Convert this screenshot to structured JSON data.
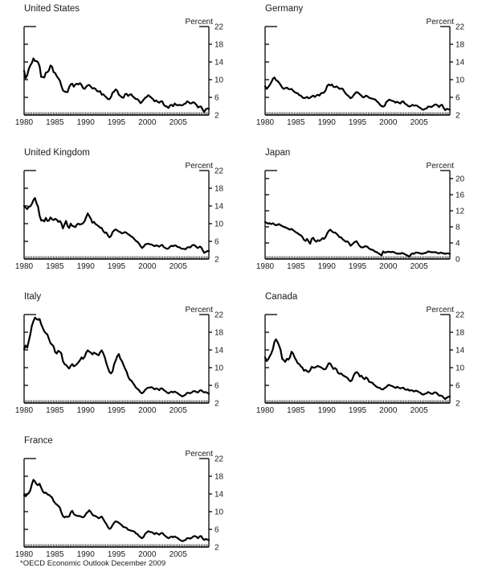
{
  "footnote": "*OECD Economic Outlook December 2009",
  "chart_data": [
    {
      "type": "line",
      "title": "United States",
      "unit": "Percent",
      "ylim": [
        2,
        22
      ],
      "yticks": [
        2,
        6,
        10,
        14,
        18,
        22
      ],
      "xlim": [
        1980,
        2010
      ],
      "xticks": [
        1980,
        1985,
        1990,
        1995,
        2000,
        2005
      ],
      "frequency": "quarterly 1980Q1-2009Q4",
      "values": [
        12.0,
        10.3,
        11.0,
        12.4,
        13.2,
        13.8,
        14.8,
        14.2,
        14.2,
        13.9,
        13.0,
        10.6,
        10.6,
        10.5,
        11.6,
        11.7,
        12.1,
        13.2,
        12.9,
        11.7,
        11.5,
        10.8,
        10.3,
        9.8,
        8.6,
        7.6,
        7.3,
        7.2,
        7.2,
        8.3,
        8.9,
        9.1,
        8.4,
        8.9,
        9.1,
        8.9,
        9.2,
        8.8,
        8.1,
        7.9,
        8.4,
        8.7,
        8.8,
        8.4,
        8.0,
        8.1,
        7.9,
        7.4,
        7.3,
        7.4,
        6.6,
        6.7,
        6.3,
        6.0,
        5.6,
        5.6,
        6.1,
        7.1,
        7.3,
        7.8,
        7.5,
        6.6,
        6.3,
        6.0,
        5.9,
        6.7,
        6.8,
        6.3,
        6.6,
        6.7,
        6.2,
        5.9,
        5.6,
        5.6,
        5.2,
        4.7,
        5.0,
        5.5,
        5.9,
        6.1,
        6.5,
        6.2,
        5.9,
        5.6,
        5.1,
        5.3,
        5.0,
        4.8,
        5.1,
        5.1,
        4.3,
        4.0,
        3.9,
        3.6,
        4.2,
        4.3,
        4.0,
        4.6,
        4.3,
        4.2,
        4.3,
        4.2,
        4.2,
        4.5,
        4.6,
        5.1,
        4.9,
        4.6,
        4.7,
        4.9,
        4.7,
        4.3,
        3.7,
        3.9,
        3.9,
        3.2,
        2.7,
        3.3,
        3.5,
        3.4
      ]
    },
    {
      "type": "line",
      "title": "Germany",
      "unit": "Percent",
      "ylim": [
        2,
        22
      ],
      "yticks": [
        2,
        6,
        10,
        14,
        18,
        22
      ],
      "xlim": [
        1980,
        2010
      ],
      "xticks": [
        1980,
        1985,
        1990,
        1995,
        2000,
        2005
      ],
      "frequency": "quarterly 1980Q1-2009Q4",
      "values": [
        8.5,
        7.9,
        8.3,
        8.8,
        9.4,
        10.2,
        10.5,
        9.9,
        9.7,
        9.3,
        8.8,
        8.2,
        7.9,
        8.1,
        8.2,
        7.9,
        7.8,
        7.9,
        7.5,
        7.2,
        7.0,
        6.9,
        6.5,
        6.4,
        6.0,
        5.8,
        5.9,
        6.1,
        5.8,
        5.9,
        6.2,
        6.4,
        6.1,
        6.4,
        6.6,
        6.4,
        6.9,
        7.0,
        7.1,
        7.6,
        8.6,
        8.9,
        8.7,
        8.9,
        8.4,
        8.3,
        8.5,
        8.2,
        7.9,
        8.0,
        7.9,
        7.3,
        6.8,
        6.5,
        6.2,
        5.8,
        6.0,
        6.5,
        6.9,
        7.2,
        7.0,
        6.7,
        6.4,
        6.0,
        6.1,
        6.4,
        6.2,
        5.9,
        5.8,
        5.7,
        5.6,
        5.5,
        5.1,
        4.8,
        4.3,
        4.0,
        3.9,
        4.1,
        4.9,
        5.2,
        5.5,
        5.3,
        5.2,
        5.1,
        4.8,
        5.0,
        4.8,
        4.6,
        5.0,
        5.1,
        4.6,
        4.4,
        4.1,
        3.9,
        4.1,
        4.3,
        4.1,
        4.2,
        4.1,
        3.8,
        3.6,
        3.3,
        3.2,
        3.4,
        3.5,
        3.9,
        3.9,
        3.8,
        4.0,
        4.3,
        4.4,
        4.2,
        3.8,
        4.2,
        4.3,
        3.6,
        3.1,
        3.4,
        3.3,
        3.2
      ]
    },
    {
      "type": "line",
      "title": "United Kingdom",
      "unit": "Percent",
      "ylim": [
        2,
        22
      ],
      "yticks": [
        2,
        6,
        10,
        14,
        18,
        22
      ],
      "xlim": [
        1980,
        2010
      ],
      "xticks": [
        1980,
        1985,
        1990,
        1995,
        2000,
        2005
      ],
      "frequency": "quarterly 1980Q1-2009Q4",
      "values": [
        14.0,
        13.6,
        13.3,
        13.8,
        13.9,
        14.5,
        15.3,
        15.8,
        14.6,
        13.8,
        11.8,
        10.7,
        10.8,
        10.5,
        11.3,
        10.6,
        10.7,
        11.4,
        11.0,
        10.8,
        11.1,
        10.9,
        10.4,
        10.6,
        10.1,
        8.9,
        9.8,
        10.6,
        9.5,
        9.0,
        10.0,
        9.5,
        9.4,
        9.2,
        9.8,
        10.0,
        9.8,
        9.9,
        10.1,
        10.6,
        11.5,
        12.3,
        11.7,
        11.1,
        10.2,
        10.4,
        9.9,
        9.7,
        9.4,
        9.1,
        9.0,
        8.3,
        7.9,
        8.0,
        7.3,
        6.9,
        7.2,
        8.1,
        8.5,
        8.7,
        8.5,
        8.2,
        8.1,
        7.8,
        7.9,
        8.1,
        7.9,
        7.6,
        7.4,
        7.1,
        6.9,
        6.5,
        6.1,
        5.9,
        5.5,
        4.9,
        4.5,
        4.8,
        5.3,
        5.4,
        5.5,
        5.3,
        5.3,
        5.1,
        4.9,
        5.1,
        5.0,
        4.8,
        5.1,
        5.2,
        4.7,
        4.5,
        4.3,
        4.4,
        4.8,
        5.0,
        4.9,
        5.1,
        5.0,
        4.7,
        4.7,
        4.4,
        4.3,
        4.3,
        4.2,
        4.6,
        4.7,
        4.6,
        5.0,
        5.2,
        5.1,
        4.7,
        4.5,
        4.8,
        4.7,
        4.0,
        3.4,
        3.6,
        3.8,
        3.8
      ]
    },
    {
      "type": "line",
      "title": "Japan",
      "unit": "Percent",
      "ylim": [
        0,
        22
      ],
      "yticks": [
        0,
        4,
        8,
        12,
        16,
        20
      ],
      "xlim": [
        1980,
        2010
      ],
      "xticks": [
        1980,
        1985,
        1990,
        1995,
        2000,
        2005
      ],
      "frequency": "quarterly 1980Q1-2009Q4",
      "values": [
        9.2,
        9.0,
        8.8,
        8.9,
        8.7,
        8.9,
        8.6,
        8.4,
        8.5,
        8.7,
        8.4,
        8.2,
        8.0,
        7.9,
        7.7,
        7.5,
        7.3,
        7.5,
        7.2,
        6.9,
        6.6,
        6.4,
        6.1,
        5.9,
        5.5,
        4.8,
        4.5,
        5.0,
        4.4,
        3.8,
        5.0,
        5.3,
        4.6,
        4.3,
        4.7,
        4.5,
        4.8,
        5.2,
        5.0,
        5.5,
        6.4,
        7.0,
        7.3,
        6.9,
        6.6,
        6.6,
        6.3,
        5.9,
        5.4,
        5.4,
        4.9,
        4.6,
        4.3,
        4.4,
        4.0,
        3.3,
        3.6,
        4.0,
        4.3,
        4.4,
        3.7,
        3.2,
        2.9,
        2.9,
        3.1,
        3.2,
        3.0,
        2.6,
        2.4,
        2.3,
        2.1,
        1.8,
        1.7,
        1.4,
        1.2,
        0.9,
        1.9,
        1.6,
        1.7,
        1.8,
        1.8,
        1.7,
        1.8,
        1.7,
        1.5,
        1.3,
        1.4,
        1.3,
        1.5,
        1.4,
        1.2,
        1.0,
        0.8,
        0.6,
        1.2,
        1.4,
        1.3,
        1.6,
        1.6,
        1.5,
        1.4,
        1.3,
        1.4,
        1.5,
        1.6,
        1.9,
        1.8,
        1.7,
        1.7,
        1.7,
        1.7,
        1.5,
        1.4,
        1.6,
        1.5,
        1.4,
        1.3,
        1.4,
        1.4,
        1.3
      ]
    },
    {
      "type": "line",
      "title": "Italy",
      "unit": "Percent",
      "ylim": [
        2,
        22
      ],
      "yticks": [
        2,
        6,
        10,
        14,
        18,
        22
      ],
      "xlim": [
        1980,
        2010
      ],
      "xticks": [
        1980,
        1985,
        1990,
        1995,
        2000,
        2005
      ],
      "frequency": "quarterly 1980Q1-2009Q4",
      "values": [
        14.2,
        15.0,
        14.5,
        16.0,
        17.5,
        19.5,
        20.5,
        21.3,
        21.0,
        20.8,
        21.0,
        19.8,
        19.0,
        18.2,
        17.8,
        17.5,
        16.5,
        15.5,
        15.2,
        14.8,
        13.5,
        13.2,
        13.8,
        13.6,
        13.2,
        11.5,
        10.8,
        10.6,
        10.2,
        9.8,
        10.4,
        10.8,
        10.3,
        10.5,
        10.8,
        11.2,
        11.7,
        12.3,
        12.0,
        12.5,
        13.4,
        13.9,
        13.6,
        13.4,
        13.0,
        13.4,
        13.2,
        13.0,
        12.8,
        13.5,
        13.9,
        13.2,
        12.3,
        11.0,
        9.9,
        9.0,
        8.7,
        9.2,
        10.8,
        11.6,
        12.6,
        13.1,
        12.0,
        11.5,
        10.6,
        9.8,
        9.1,
        8.0,
        7.3,
        7.1,
        6.6,
        6.1,
        5.5,
        5.2,
        4.9,
        4.4,
        4.2,
        4.5,
        5.0,
        5.3,
        5.5,
        5.5,
        5.6,
        5.4,
        5.1,
        5.3,
        5.2,
        4.9,
        5.3,
        5.3,
        4.9,
        4.7,
        4.4,
        4.2,
        4.4,
        4.6,
        4.4,
        4.6,
        4.4,
        4.2,
        3.9,
        3.7,
        3.5,
        3.7,
        3.9,
        4.3,
        4.3,
        4.2,
        4.4,
        4.7,
        4.7,
        4.5,
        4.4,
        4.8,
        4.9,
        4.6,
        4.4,
        4.5,
        4.3,
        4.1
      ]
    },
    {
      "type": "line",
      "title": "Canada",
      "unit": "Percent",
      "ylim": [
        2,
        22
      ],
      "yticks": [
        2,
        6,
        10,
        14,
        18,
        22
      ],
      "xlim": [
        1980,
        2010
      ],
      "xticks": [
        1980,
        1985,
        1990,
        1995,
        2000,
        2005
      ],
      "frequency": "quarterly 1980Q1-2009Q4",
      "values": [
        12.3,
        11.5,
        11.9,
        12.6,
        13.2,
        14.2,
        15.8,
        16.4,
        15.8,
        15.0,
        14.0,
        12.0,
        11.7,
        11.3,
        12.0,
        11.8,
        12.3,
        13.6,
        13.2,
        12.3,
        11.7,
        11.0,
        10.8,
        10.3,
        10.0,
        9.3,
        9.5,
        9.2,
        9.0,
        9.4,
        10.2,
        10.0,
        10.0,
        10.2,
        10.4,
        10.2,
        10.1,
        9.8,
        9.6,
        9.7,
        10.3,
        11.0,
        10.9,
        10.3,
        9.7,
        9.9,
        9.6,
        8.8,
        8.6,
        8.7,
        8.3,
        8.1,
        7.9,
        7.7,
        7.2,
        6.9,
        7.2,
        8.2,
        8.8,
        9.0,
        8.7,
        8.0,
        8.2,
        7.7,
        7.4,
        7.8,
        7.5,
        6.8,
        6.7,
        6.6,
        6.2,
        5.9,
        5.6,
        5.5,
        5.4,
        5.1,
        5.1,
        5.4,
        5.6,
        6.0,
        6.1,
        5.9,
        5.8,
        5.6,
        5.4,
        5.7,
        5.5,
        5.3,
        5.4,
        5.5,
        5.1,
        5.0,
        5.1,
        4.8,
        4.9,
        4.8,
        4.6,
        4.8,
        4.7,
        4.5,
        4.3,
        4.0,
        3.9,
        4.1,
        4.2,
        4.5,
        4.3,
        4.1,
        4.1,
        4.4,
        4.4,
        4.1,
        3.7,
        3.7,
        3.6,
        3.2,
        2.9,
        3.2,
        3.4,
        3.5
      ]
    },
    {
      "type": "line",
      "title": "France",
      "unit": "Percent",
      "ylim": [
        2,
        22
      ],
      "yticks": [
        2,
        6,
        10,
        14,
        18,
        22
      ],
      "xlim": [
        1980,
        2010
      ],
      "xticks": [
        1980,
        1985,
        1990,
        1995,
        2000,
        2005
      ],
      "frequency": "quarterly 1980Q1-2009Q4",
      "values": [
        13.8,
        13.5,
        13.9,
        14.2,
        14.8,
        16.2,
        17.2,
        16.8,
        16.2,
        16.0,
        16.3,
        15.4,
        14.6,
        14.2,
        14.3,
        13.9,
        13.8,
        13.5,
        13.2,
        12.4,
        11.9,
        11.6,
        11.3,
        10.9,
        9.8,
        9.0,
        8.7,
        8.9,
        8.8,
        8.9,
        9.8,
        10.2,
        9.5,
        9.2,
        9.1,
        9.0,
        9.0,
        8.8,
        8.7,
        9.0,
        9.6,
        9.9,
        10.3,
        9.9,
        9.3,
        9.1,
        9.0,
        8.8,
        8.5,
        8.7,
        8.9,
        8.3,
        7.7,
        7.2,
        6.5,
        6.1,
        6.3,
        7.0,
        7.5,
        7.8,
        7.7,
        7.5,
        7.2,
        6.9,
        6.5,
        6.5,
        6.3,
        5.9,
        5.8,
        5.7,
        5.6,
        5.5,
        5.1,
        4.9,
        4.5,
        4.2,
        4.0,
        4.3,
        5.0,
        5.3,
        5.6,
        5.4,
        5.4,
        5.2,
        4.9,
        5.2,
        5.0,
        4.8,
        5.1,
        5.2,
        4.8,
        4.5,
        4.2,
        4.0,
        4.2,
        4.4,
        4.2,
        4.4,
        4.2,
        4.0,
        3.7,
        3.5,
        3.3,
        3.5,
        3.6,
        4.0,
        4.0,
        3.9,
        4.1,
        4.4,
        4.5,
        4.3,
        4.0,
        4.4,
        4.5,
        3.9,
        3.6,
        3.8,
        3.7,
        3.6
      ]
    }
  ]
}
